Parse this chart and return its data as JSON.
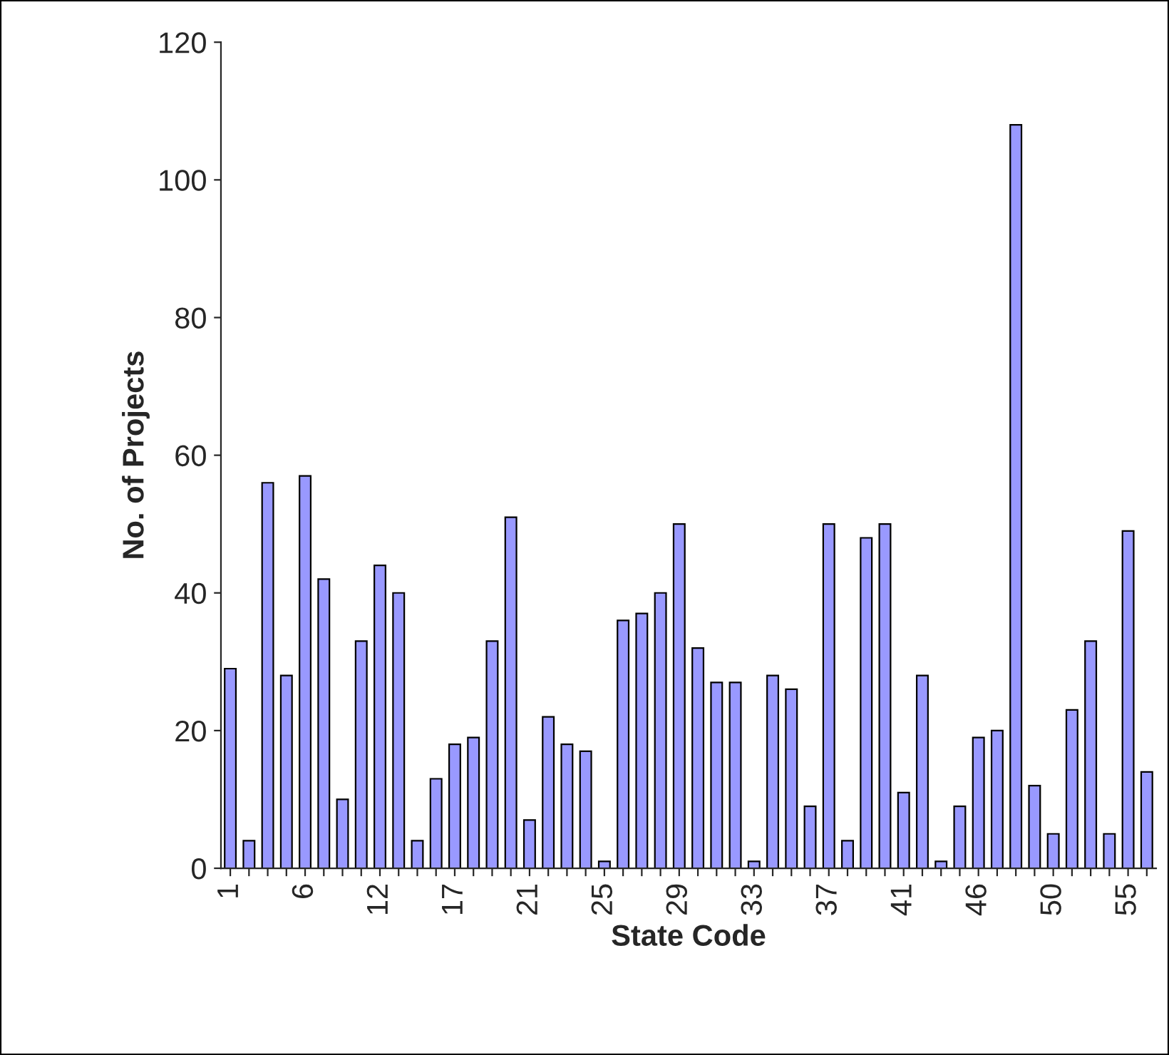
{
  "chart_data": {
    "type": "bar",
    "xlabel": "State Code",
    "ylabel": "No. of Projects",
    "categories": [
      "1",
      null,
      null,
      null,
      "6",
      null,
      null,
      null,
      "12",
      null,
      null,
      null,
      "17",
      null,
      null,
      null,
      "21",
      null,
      null,
      null,
      "25",
      null,
      null,
      null,
      "29",
      null,
      null,
      null,
      "33",
      null,
      null,
      null,
      "37",
      null,
      null,
      null,
      "41",
      null,
      null,
      null,
      "46",
      null,
      null,
      null,
      "50",
      null,
      null,
      null,
      "55",
      null
    ],
    "values": [
      29,
      4,
      56,
      28,
      57,
      42,
      10,
      33,
      44,
      40,
      4,
      13,
      18,
      19,
      33,
      51,
      7,
      22,
      18,
      17,
      1,
      36,
      37,
      40,
      50,
      32,
      27,
      27,
      1,
      28,
      26,
      9,
      50,
      4,
      48,
      50,
      11,
      28,
      1,
      9,
      19,
      20,
      108,
      12,
      5,
      23,
      33,
      5,
      49,
      14
    ],
    "color": "#9999ff",
    "ylim": [
      0,
      120
    ],
    "yticks": [
      0,
      20,
      40,
      60,
      80,
      100,
      120
    ],
    "grid": false,
    "legend": false
  }
}
